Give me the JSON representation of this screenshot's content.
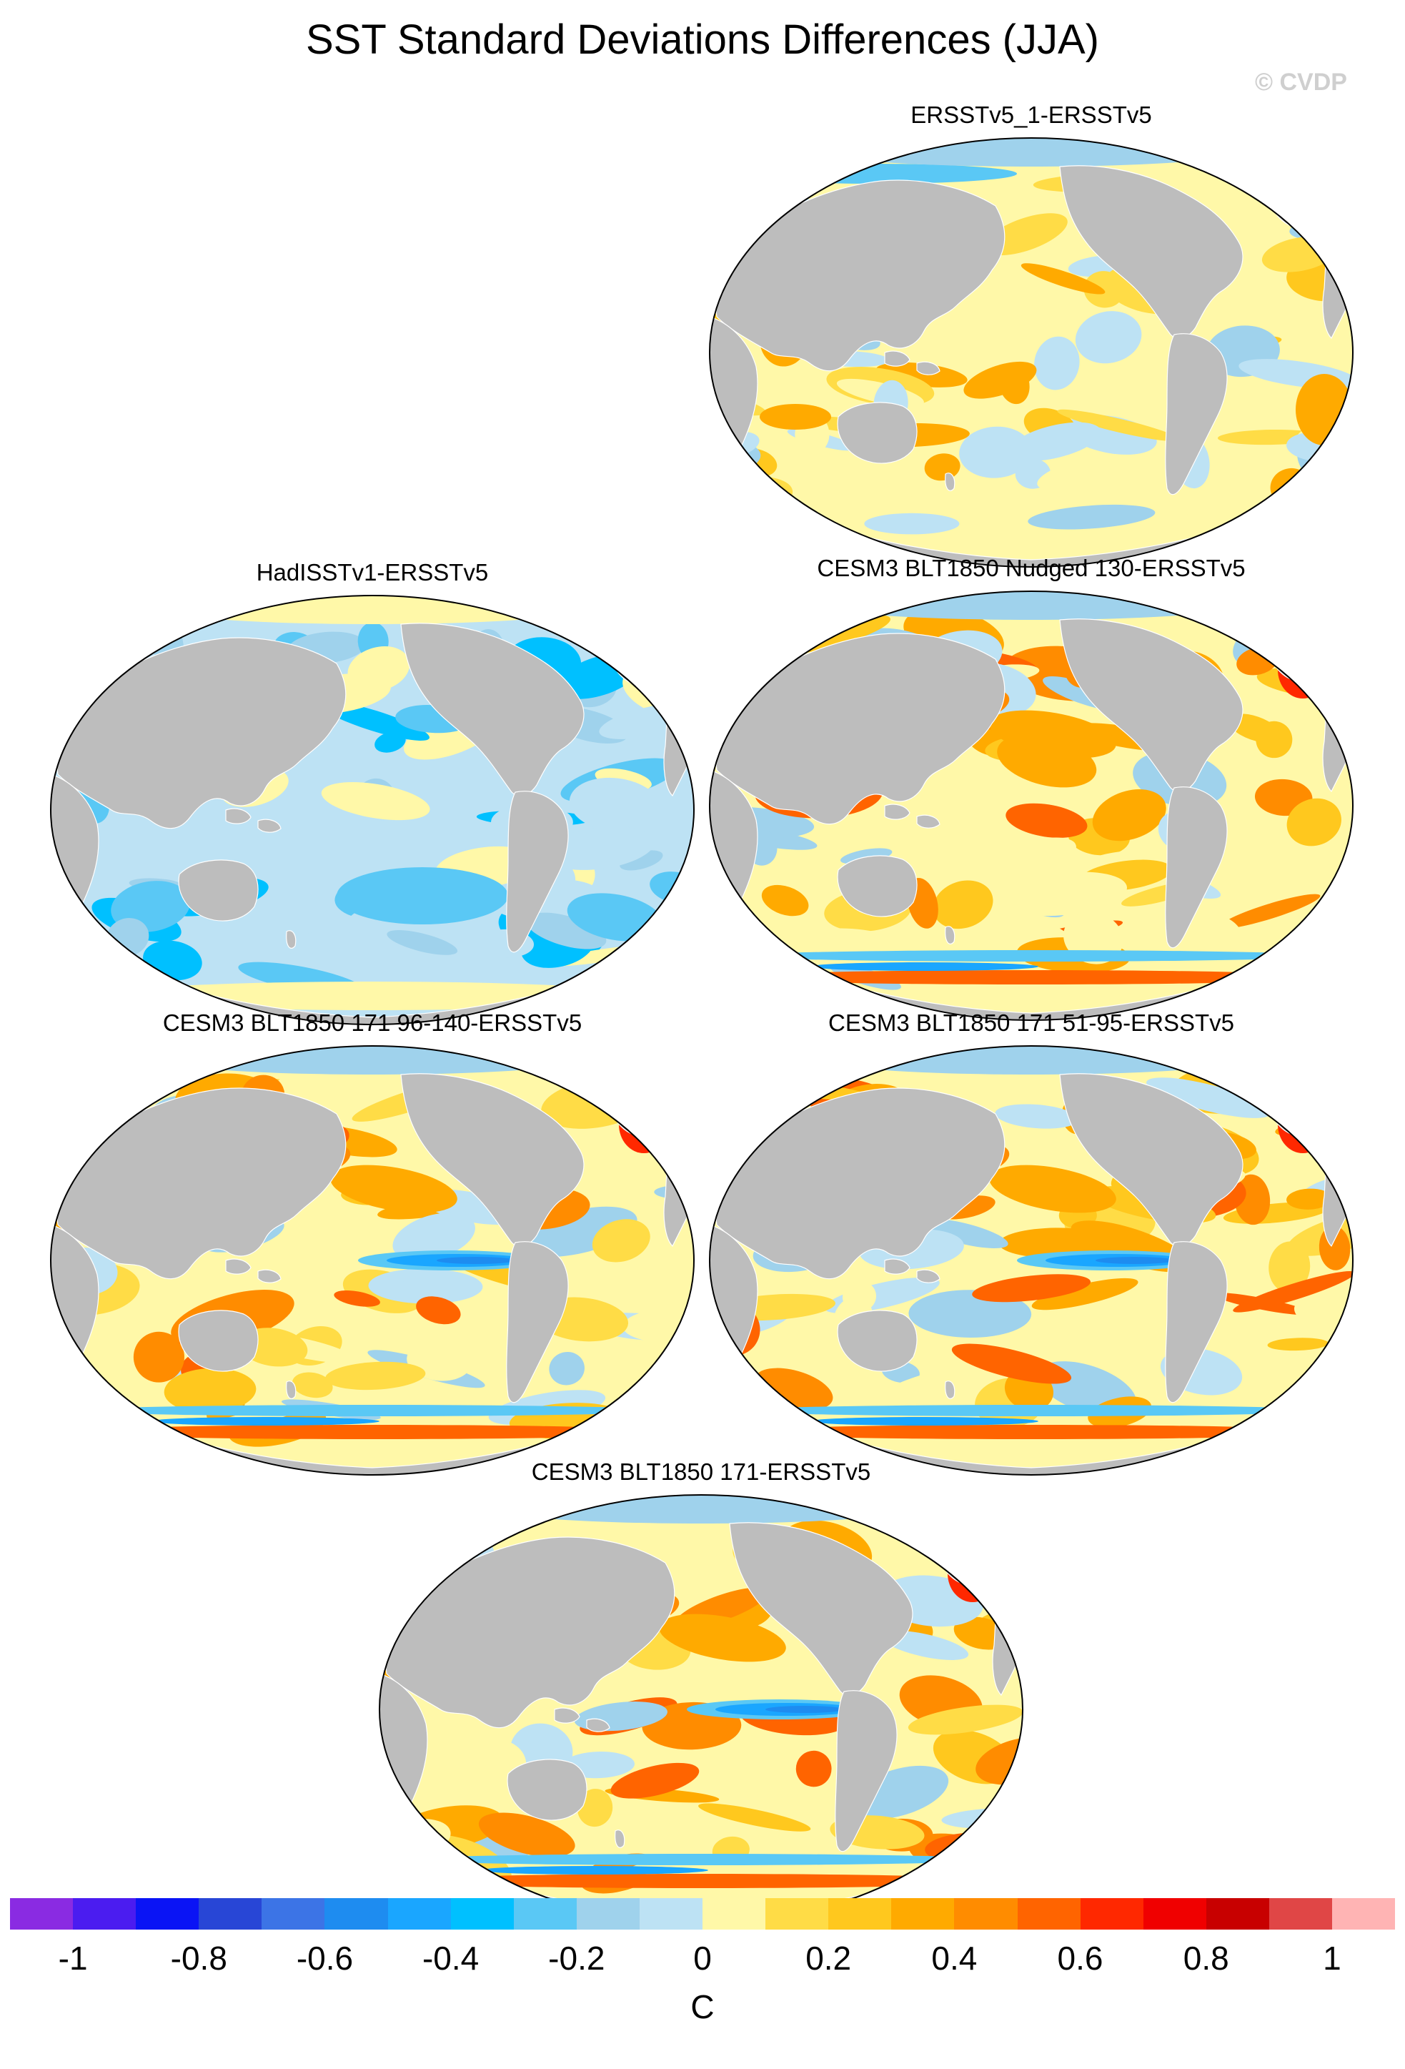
{
  "title": "SST Standard Deviations Differences (JJA)",
  "credit": "© CVDP",
  "panels": [
    {
      "title": "ERSSTv5_1-ERSSTv5",
      "theme": "warm_mild"
    },
    {
      "title": "HadISSTv1-ERSSTv5",
      "theme": "cool"
    },
    {
      "title": "CESM3 BLT1850 Nudged 130-ERSSTv5",
      "theme": "warm_strong"
    },
    {
      "title": "CESM3 BLT1850 171 96-140-ERSSTv5",
      "theme": "warm_enso"
    },
    {
      "title": "CESM3 BLT1850 171 51-95-ERSSTv5",
      "theme": "warm_enso"
    },
    {
      "title": "CESM3 BLT1850 171-ERSSTv5",
      "theme": "warm_enso"
    }
  ],
  "colorbar": {
    "unit": "C",
    "colors": [
      "#8a2be2",
      "#4b1cf0",
      "#0a14f5",
      "#2846d6",
      "#3c74e6",
      "#1e8cf0",
      "#1aa6ff",
      "#00c0ff",
      "#5ac8f5",
      "#9fd2ec",
      "#bde2f4",
      "#fff8a8",
      "#ffdc46",
      "#ffc81e",
      "#ffaa00",
      "#ff8c00",
      "#ff6400",
      "#ff2800",
      "#f00000",
      "#c80000",
      "#e04646",
      "#ffb4b4"
    ],
    "tick_labels": [
      "-1",
      "-0.8",
      "-0.6",
      "-0.4",
      "-0.2",
      "0",
      "0.2",
      "0.4",
      "0.6",
      "0.8",
      "1"
    ],
    "ticks": [
      -1,
      -0.8,
      -0.6,
      -0.4,
      -0.2,
      0,
      0.2,
      0.4,
      0.6,
      0.8,
      1
    ],
    "range": [
      -1.1,
      1.1
    ]
  },
  "land_color": "#bdbdbd",
  "ocean_base": {
    "warm_mild": "#fff8a8",
    "cool": "#bde2f4",
    "warm_strong": "#fff8a8",
    "warm_enso": "#fff8a8"
  }
}
